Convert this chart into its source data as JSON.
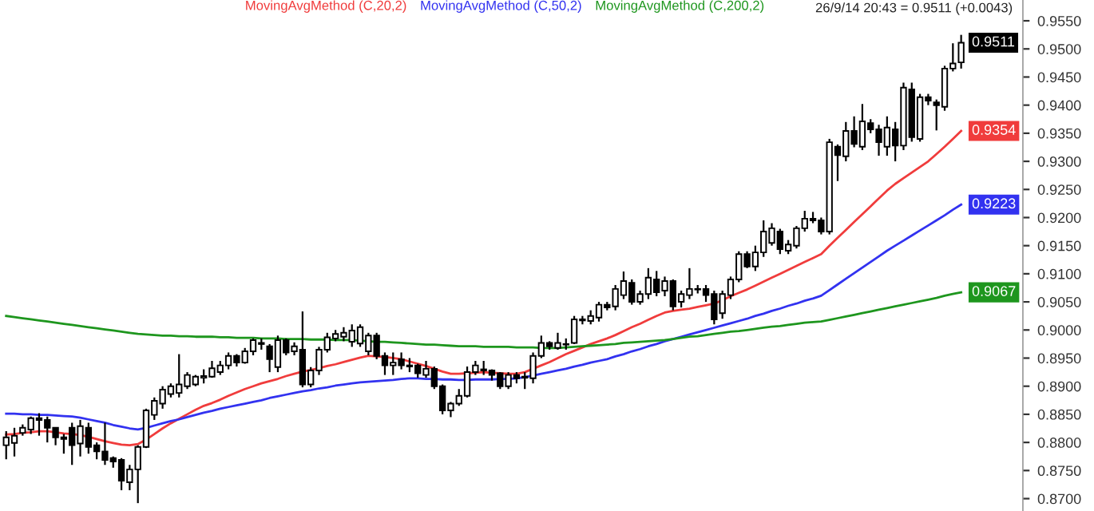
{
  "chart_data": {
    "type": "candlestick",
    "legend": "top",
    "grid": false,
    "categories": [
      null,
      null,
      null,
      null,
      null,
      null,
      null,
      null,
      null,
      null,
      null,
      null,
      null,
      null,
      null,
      null,
      null,
      null,
      null,
      null,
      null,
      null,
      null,
      null,
      null,
      null,
      null,
      null,
      null,
      null,
      null,
      null,
      null,
      null,
      null,
      null,
      null,
      null,
      null,
      null,
      null,
      null,
      null,
      null,
      null,
      null,
      null,
      null,
      null,
      null,
      null,
      null,
      null,
      null,
      null,
      null,
      null,
      null,
      null,
      null,
      null,
      null,
      null,
      null,
      null,
      null,
      null,
      null,
      null,
      null,
      null,
      null,
      null,
      null,
      null,
      null,
      null,
      null,
      null,
      null,
      null,
      null,
      null,
      null,
      null,
      null,
      null,
      null,
      null,
      null,
      null,
      null,
      null,
      null,
      null,
      null,
      null,
      null,
      null,
      null,
      null,
      null,
      null,
      null,
      null,
      null,
      null,
      null,
      null,
      null,
      null,
      null,
      null,
      null,
      null,
      null,
      null
    ],
    "ylim": [
      0.8678,
      0.9587
    ],
    "yticks": [
      {
        "value": 0.87,
        "label": "0.8700"
      },
      {
        "value": 0.875,
        "label": "0.8750"
      },
      {
        "value": 0.88,
        "label": "0.8800"
      },
      {
        "value": 0.885,
        "label": "0.8850"
      },
      {
        "value": 0.89,
        "label": "0.8900"
      },
      {
        "value": 0.895,
        "label": "0.8950"
      },
      {
        "value": 0.9,
        "label": "0.9000"
      },
      {
        "value": 0.905,
        "label": "0.9050"
      },
      {
        "value": 0.91,
        "label": "0.9100"
      },
      {
        "value": 0.915,
        "label": "0.9150"
      },
      {
        "value": 0.92,
        "label": "0.9200"
      },
      {
        "value": 0.925,
        "label": "0.9250"
      },
      {
        "value": 0.93,
        "label": "0.9300"
      },
      {
        "value": 0.935,
        "label": "0.9350"
      },
      {
        "value": 0.94,
        "label": "0.9400"
      },
      {
        "value": 0.945,
        "label": "0.9450"
      },
      {
        "value": 0.95,
        "label": "0.9500"
      },
      {
        "value": 0.955,
        "label": "0.9550"
      }
    ],
    "annotations": [
      "26/9/14 20:43 = 0.9511 (+0.0043)"
    ],
    "series": [
      {
        "type": "line",
        "name": "MovingAvgMethod (C,20,2)",
        "color": "#f03c3c",
        "values": [
          0.8814,
          0.8815,
          0.8817,
          0.8818,
          0.882,
          0.882,
          0.8818,
          0.8816,
          0.8815,
          0.8813,
          0.881,
          0.8806,
          0.8802,
          0.8799,
          0.8796,
          0.8795,
          0.8797,
          0.8805,
          0.8815,
          0.8825,
          0.8834,
          0.8842,
          0.885,
          0.8858,
          0.8865,
          0.887,
          0.8876,
          0.8883,
          0.8889,
          0.8895,
          0.89,
          0.8905,
          0.8909,
          0.8913,
          0.8918,
          0.8922,
          0.8926,
          0.8929,
          0.8932,
          0.8936,
          0.8939,
          0.8943,
          0.8947,
          0.8951,
          0.8954,
          0.8953,
          0.8952,
          0.895,
          0.8948,
          0.8944,
          0.894,
          0.8936,
          0.8931,
          0.8926,
          0.8922,
          0.8922,
          0.8923,
          0.8924,
          0.8925,
          0.8924,
          0.8923,
          0.8922,
          0.8922,
          0.8925,
          0.8931,
          0.8937,
          0.8943,
          0.895,
          0.8957,
          0.8963,
          0.8969,
          0.8975,
          0.898,
          0.8985,
          0.8991,
          0.8998,
          0.9005,
          0.9011,
          0.9018,
          0.9025,
          0.9031,
          0.9034,
          0.9036,
          0.9038,
          0.9041,
          0.9044,
          0.9047,
          0.9053,
          0.906,
          0.9066,
          0.9072,
          0.9079,
          0.9086,
          0.9093,
          0.91,
          0.9107,
          0.9114,
          0.9121,
          0.9128,
          0.9135,
          0.915,
          0.9164,
          0.9178,
          0.9192,
          0.9206,
          0.922,
          0.9234,
          0.9248,
          0.926,
          0.927,
          0.928,
          0.929,
          0.93,
          0.9313,
          0.9326,
          0.934,
          0.9354
        ],
        "value_labels": [
          null,
          null,
          null,
          null,
          null,
          null,
          null,
          null,
          null,
          null,
          null,
          null,
          null,
          null,
          null,
          null,
          null,
          null,
          null,
          null,
          null,
          null,
          null,
          null,
          null,
          null,
          null,
          null,
          null,
          null,
          null,
          null,
          null,
          null,
          null,
          null,
          null,
          null,
          null,
          null,
          null,
          null,
          null,
          null,
          null,
          null,
          null,
          null,
          null,
          null,
          null,
          null,
          null,
          null,
          null,
          null,
          null,
          null,
          null,
          null,
          null,
          null,
          null,
          null,
          null,
          null,
          null,
          null,
          null,
          null,
          null,
          null,
          null,
          null,
          null,
          null,
          null,
          null,
          null,
          null,
          null,
          null,
          null,
          null,
          null,
          null,
          null,
          null,
          null,
          null,
          null,
          null,
          null,
          null,
          null,
          null,
          null,
          null,
          null,
          null,
          null,
          null,
          null,
          null,
          null,
          null,
          null,
          null,
          null,
          null,
          null,
          null,
          null,
          null,
          null,
          null,
          "0.9354"
        ]
      },
      {
        "type": "line",
        "name": "MovingAvgMethod (C,50,2)",
        "color": "#3232f0",
        "values": [
          0.8851,
          0.8851,
          0.885,
          0.885,
          0.8849,
          0.8849,
          0.8848,
          0.8847,
          0.8846,
          0.8844,
          0.8841,
          0.8838,
          0.8835,
          0.8831,
          0.8828,
          0.8825,
          0.8823,
          0.8826,
          0.883,
          0.8834,
          0.8838,
          0.8841,
          0.8845,
          0.8849,
          0.8853,
          0.8856,
          0.886,
          0.8863,
          0.8866,
          0.8869,
          0.8872,
          0.8875,
          0.8879,
          0.8882,
          0.8885,
          0.8888,
          0.8891,
          0.8893,
          0.8896,
          0.8898,
          0.8901,
          0.8903,
          0.8905,
          0.8907,
          0.8908,
          0.8909,
          0.891,
          0.8911,
          0.8913,
          0.8914,
          0.8914,
          0.8913,
          0.8913,
          0.8912,
          0.8912,
          0.8911,
          0.8911,
          0.8912,
          0.8912,
          0.8912,
          0.8913,
          0.8913,
          0.8914,
          0.8916,
          0.8919,
          0.8922,
          0.8925,
          0.8928,
          0.8931,
          0.8935,
          0.8938,
          0.8942,
          0.8945,
          0.8948,
          0.8953,
          0.8957,
          0.8962,
          0.8966,
          0.8971,
          0.8975,
          0.898,
          0.8984,
          0.8988,
          0.8992,
          0.8996,
          0.9,
          0.9004,
          0.9008,
          0.9012,
          0.9016,
          0.902,
          0.9025,
          0.9029,
          0.9034,
          0.9038,
          0.9043,
          0.9047,
          0.9052,
          0.9056,
          0.9061,
          0.9071,
          0.9081,
          0.9091,
          0.9101,
          0.9111,
          0.9121,
          0.9131,
          0.9141,
          0.915,
          0.9159,
          0.9168,
          0.9177,
          0.9186,
          0.9195,
          0.9204,
          0.9214,
          0.9223
        ],
        "value_labels": [
          null,
          null,
          null,
          null,
          null,
          null,
          null,
          null,
          null,
          null,
          null,
          null,
          null,
          null,
          null,
          null,
          null,
          null,
          null,
          null,
          null,
          null,
          null,
          null,
          null,
          null,
          null,
          null,
          null,
          null,
          null,
          null,
          null,
          null,
          null,
          null,
          null,
          null,
          null,
          null,
          null,
          null,
          null,
          null,
          null,
          null,
          null,
          null,
          null,
          null,
          null,
          null,
          null,
          null,
          null,
          null,
          null,
          null,
          null,
          null,
          null,
          null,
          null,
          null,
          null,
          null,
          null,
          null,
          null,
          null,
          null,
          null,
          null,
          null,
          null,
          null,
          null,
          null,
          null,
          null,
          null,
          null,
          null,
          null,
          null,
          null,
          null,
          null,
          null,
          null,
          null,
          null,
          null,
          null,
          null,
          null,
          null,
          null,
          null,
          null,
          null,
          null,
          null,
          null,
          null,
          null,
          null,
          null,
          null,
          null,
          null,
          null,
          null,
          null,
          null,
          null,
          "0.9223"
        ]
      },
      {
        "type": "line",
        "name": "MovingAvgMethod (C,200,2)",
        "color": "#1e961e",
        "values": [
          0.9025,
          0.9023,
          0.9021,
          0.9019,
          0.9017,
          0.9015,
          0.9013,
          0.9011,
          0.9009,
          0.9007,
          0.9005,
          0.9003,
          0.9001,
          0.8999,
          0.8997,
          0.8995,
          0.8993,
          0.8992,
          0.8991,
          0.899,
          0.899,
          0.8989,
          0.8989,
          0.8988,
          0.8988,
          0.8988,
          0.8987,
          0.8987,
          0.8986,
          0.8986,
          0.8986,
          0.8985,
          0.8985,
          0.8985,
          0.8984,
          0.8984,
          0.8984,
          0.8983,
          0.8983,
          0.8983,
          0.8982,
          0.8982,
          0.8982,
          0.8981,
          0.898,
          0.8979,
          0.8979,
          0.8978,
          0.8977,
          0.8976,
          0.8975,
          0.8974,
          0.8974,
          0.8973,
          0.8972,
          0.8971,
          0.8971,
          0.8971,
          0.897,
          0.897,
          0.897,
          0.897,
          0.8969,
          0.8969,
          0.8969,
          0.8968,
          0.8968,
          0.8968,
          0.8969,
          0.897,
          0.8971,
          0.8972,
          0.8973,
          0.8974,
          0.8975,
          0.8977,
          0.8978,
          0.8979,
          0.898,
          0.8981,
          0.8982,
          0.8984,
          0.8986,
          0.8988,
          0.8989,
          0.8991,
          0.8993,
          0.8995,
          0.8997,
          0.8998,
          0.9,
          0.9002,
          0.9004,
          0.9006,
          0.9007,
          0.9009,
          0.9011,
          0.9013,
          0.9014,
          0.9015,
          0.9018,
          0.9021,
          0.9024,
          0.9027,
          0.903,
          0.9033,
          0.9036,
          0.9039,
          0.9042,
          0.9045,
          0.9048,
          0.9051,
          0.9054,
          0.9057,
          0.9061,
          0.9064,
          0.9067
        ],
        "value_labels": [
          null,
          null,
          null,
          null,
          null,
          null,
          null,
          null,
          null,
          null,
          null,
          null,
          null,
          null,
          null,
          null,
          null,
          null,
          null,
          null,
          null,
          null,
          null,
          null,
          null,
          null,
          null,
          null,
          null,
          null,
          null,
          null,
          null,
          null,
          null,
          null,
          null,
          null,
          null,
          null,
          null,
          null,
          null,
          null,
          null,
          null,
          null,
          null,
          null,
          null,
          null,
          null,
          null,
          null,
          null,
          null,
          null,
          null,
          null,
          null,
          null,
          null,
          null,
          null,
          null,
          null,
          null,
          null,
          null,
          null,
          null,
          null,
          null,
          null,
          null,
          null,
          null,
          null,
          null,
          null,
          null,
          null,
          null,
          null,
          null,
          null,
          null,
          null,
          null,
          null,
          null,
          null,
          null,
          null,
          null,
          null,
          null,
          null,
          null,
          null,
          null,
          null,
          null,
          null,
          null,
          null,
          null,
          null,
          null,
          null,
          null,
          null,
          null,
          null,
          null,
          null,
          "0.9067"
        ]
      },
      {
        "color": "#000000",
        "ohlc": [
          [
            0.8795,
            0.882,
            0.877,
            0.8809
          ],
          [
            0.8799,
            0.8826,
            0.8775,
            0.8812
          ],
          [
            0.8817,
            0.8832,
            0.8812,
            0.8826
          ],
          [
            0.8823,
            0.8846,
            0.8815,
            0.8843
          ],
          [
            0.8843,
            0.8852,
            0.8812,
            0.884
          ],
          [
            0.884,
            0.8846,
            0.88,
            0.8826
          ],
          [
            0.8826,
            0.8826,
            0.8795,
            0.8809
          ],
          [
            0.8809,
            0.8815,
            0.878,
            0.8806
          ],
          [
            0.8826,
            0.8835,
            0.876,
            0.8795
          ],
          [
            0.8798,
            0.884,
            0.8775,
            0.8829
          ],
          [
            0.8826,
            0.8835,
            0.878,
            0.8792
          ],
          [
            0.8795,
            0.88,
            0.877,
            0.8784
          ],
          [
            0.8784,
            0.8835,
            0.876,
            0.8769
          ],
          [
            0.8772,
            0.8775,
            0.8755,
            0.8766
          ],
          [
            0.8769,
            0.8772,
            0.8715,
            0.8732
          ],
          [
            0.8729,
            0.876,
            0.8715,
            0.8752
          ],
          [
            0.8752,
            0.8795,
            0.8692,
            0.8792
          ],
          [
            0.8792,
            0.886,
            0.879,
            0.8857
          ],
          [
            0.8849,
            0.888,
            0.884,
            0.8874
          ],
          [
            0.8869,
            0.89,
            0.886,
            0.8894
          ],
          [
            0.8886,
            0.8905,
            0.888,
            0.89
          ],
          [
            0.8888,
            0.8957,
            0.888,
            0.8903
          ],
          [
            0.89,
            0.8925,
            0.8895,
            0.892
          ],
          [
            0.8903,
            0.892,
            0.89,
            0.8917
          ],
          [
            0.8915,
            0.893,
            0.8905,
            0.8918
          ],
          [
            0.8917,
            0.8945,
            0.8915,
            0.8932
          ],
          [
            0.8925,
            0.8945,
            0.892,
            0.8937
          ],
          [
            0.8937,
            0.896,
            0.893,
            0.8954
          ],
          [
            0.8954,
            0.8957,
            0.8935,
            0.8942
          ],
          [
            0.8942,
            0.8968,
            0.894,
            0.8962
          ],
          [
            0.8962,
            0.8985,
            0.8955,
            0.8982
          ],
          [
            0.8977,
            0.8985,
            0.8965,
            0.8975
          ],
          [
            0.8971,
            0.8975,
            0.8925,
            0.8948
          ],
          [
            0.8934,
            0.899,
            0.8925,
            0.8982
          ],
          [
            0.8982,
            0.8985,
            0.8955,
            0.896
          ],
          [
            0.8962,
            0.8978,
            0.8955,
            0.8971
          ],
          [
            0.8965,
            0.9033,
            0.8898,
            0.8903
          ],
          [
            0.8903,
            0.8934,
            0.8898,
            0.8928
          ],
          [
            0.8928,
            0.897,
            0.892,
            0.8965
          ],
          [
            0.8965,
            0.8995,
            0.896,
            0.8987
          ],
          [
            0.8985,
            0.9,
            0.898,
            0.8993
          ],
          [
            0.8988,
            0.9005,
            0.898,
            0.8995
          ],
          [
            0.8979,
            0.901,
            0.897,
            0.8999
          ],
          [
            0.8976,
            0.901,
            0.897,
            0.9005
          ],
          [
            0.8962,
            0.8995,
            0.8955,
            0.899
          ],
          [
            0.899,
            0.8995,
            0.8948,
            0.8954
          ],
          [
            0.8954,
            0.896,
            0.892,
            0.8937
          ],
          [
            0.8937,
            0.896,
            0.892,
            0.8942
          ],
          [
            0.8948,
            0.896,
            0.893,
            0.8937
          ],
          [
            0.8937,
            0.895,
            0.8925,
            0.8935
          ],
          [
            0.8937,
            0.894,
            0.8915,
            0.8923
          ],
          [
            0.892,
            0.8945,
            0.8915,
            0.8931
          ],
          [
            0.8931,
            0.8935,
            0.8895,
            0.89
          ],
          [
            0.89,
            0.8903,
            0.885,
            0.8857
          ],
          [
            0.8857,
            0.8872,
            0.8845,
            0.8869
          ],
          [
            0.8869,
            0.8895,
            0.8865,
            0.8883
          ],
          [
            0.8883,
            0.8935,
            0.888,
            0.8925
          ],
          [
            0.8925,
            0.8945,
            0.892,
            0.8937
          ],
          [
            0.893,
            0.8945,
            0.892,
            0.8928
          ],
          [
            0.8928,
            0.893,
            0.891,
            0.892
          ],
          [
            0.8923,
            0.8925,
            0.8895,
            0.89
          ],
          [
            0.89,
            0.8925,
            0.8895,
            0.892
          ],
          [
            0.892,
            0.8925,
            0.8905,
            0.8914
          ],
          [
            0.8915,
            0.8925,
            0.8895,
            0.8917
          ],
          [
            0.8914,
            0.896,
            0.8905,
            0.8954
          ],
          [
            0.8954,
            0.899,
            0.895,
            0.8977
          ],
          [
            0.8977,
            0.898,
            0.8965,
            0.8971
          ],
          [
            0.8968,
            0.8995,
            0.8965,
            0.8977
          ],
          [
            0.8975,
            0.8985,
            0.8965,
            0.8974
          ],
          [
            0.8977,
            0.9025,
            0.8975,
            0.9019
          ],
          [
            0.9019,
            0.9025,
            0.901,
            0.9017
          ],
          [
            0.9016,
            0.9035,
            0.901,
            0.9025
          ],
          [
            0.9022,
            0.905,
            0.9015,
            0.9045
          ],
          [
            0.9045,
            0.905,
            0.9035,
            0.904
          ],
          [
            0.9042,
            0.908,
            0.9035,
            0.9073
          ],
          [
            0.9062,
            0.9104,
            0.9055,
            0.9087
          ],
          [
            0.9084,
            0.909,
            0.9045,
            0.905
          ],
          [
            0.905,
            0.907,
            0.9045,
            0.9064
          ],
          [
            0.9064,
            0.911,
            0.9055,
            0.9093
          ],
          [
            0.909,
            0.9105,
            0.906,
            0.9067
          ],
          [
            0.907,
            0.9095,
            0.906,
            0.9087
          ],
          [
            0.9087,
            0.909,
            0.9035,
            0.9042
          ],
          [
            0.905,
            0.907,
            0.904,
            0.9064
          ],
          [
            0.9062,
            0.911,
            0.9055,
            0.9073
          ],
          [
            0.9072,
            0.908,
            0.9065,
            0.9073
          ],
          [
            0.9073,
            0.908,
            0.905,
            0.9062
          ],
          [
            0.9064,
            0.907,
            0.901,
            0.9019
          ],
          [
            0.903,
            0.907,
            0.902,
            0.9064
          ],
          [
            0.9062,
            0.9095,
            0.9055,
            0.909
          ],
          [
            0.909,
            0.914,
            0.9085,
            0.9135
          ],
          [
            0.9135,
            0.914,
            0.911,
            0.9113
          ],
          [
            0.9113,
            0.915,
            0.9105,
            0.9138
          ],
          [
            0.9138,
            0.9195,
            0.913,
            0.9175
          ],
          [
            0.9155,
            0.919,
            0.915,
            0.9181
          ],
          [
            0.9175,
            0.918,
            0.9135,
            0.9144
          ],
          [
            0.9141,
            0.916,
            0.9135,
            0.9152
          ],
          [
            0.915,
            0.9185,
            0.9145,
            0.9181
          ],
          [
            0.9181,
            0.9212,
            0.9175,
            0.9198
          ],
          [
            0.9198,
            0.921,
            0.919,
            0.9195
          ],
          [
            0.9195,
            0.92,
            0.917,
            0.9175
          ],
          [
            0.9175,
            0.934,
            0.917,
            0.9334
          ],
          [
            0.9326,
            0.933,
            0.9265,
            0.9311
          ],
          [
            0.9309,
            0.937,
            0.93,
            0.9354
          ],
          [
            0.9354,
            0.938,
            0.9325,
            0.9331
          ],
          [
            0.9326,
            0.9402,
            0.932,
            0.9371
          ],
          [
            0.9368,
            0.9375,
            0.935,
            0.9357
          ],
          [
            0.9357,
            0.9365,
            0.931,
            0.9334
          ],
          [
            0.9326,
            0.938,
            0.931,
            0.936
          ],
          [
            0.9357,
            0.937,
            0.93,
            0.9328
          ],
          [
            0.9328,
            0.944,
            0.932,
            0.9431
          ],
          [
            0.9428,
            0.944,
            0.9335,
            0.9343
          ],
          [
            0.934,
            0.942,
            0.9335,
            0.9414
          ],
          [
            0.9414,
            0.942,
            0.94,
            0.9408
          ],
          [
            0.9405,
            0.941,
            0.9355,
            0.94
          ],
          [
            0.9397,
            0.947,
            0.939,
            0.9465
          ],
          [
            0.9465,
            0.951,
            0.946,
            0.9474
          ],
          [
            0.9476,
            0.9525,
            0.9465,
            0.9511
          ]
        ],
        "value_labels": [
          null,
          null,
          null,
          null,
          null,
          null,
          null,
          null,
          null,
          null,
          null,
          null,
          null,
          null,
          null,
          null,
          null,
          null,
          null,
          null,
          null,
          null,
          null,
          null,
          null,
          null,
          null,
          null,
          null,
          null,
          null,
          null,
          null,
          null,
          null,
          null,
          null,
          null,
          null,
          null,
          null,
          null,
          null,
          null,
          null,
          null,
          null,
          null,
          null,
          null,
          null,
          null,
          null,
          null,
          null,
          null,
          null,
          null,
          null,
          null,
          null,
          null,
          null,
          null,
          null,
          null,
          null,
          null,
          null,
          null,
          null,
          null,
          null,
          null,
          null,
          null,
          null,
          null,
          null,
          null,
          null,
          null,
          null,
          null,
          null,
          null,
          null,
          null,
          null,
          null,
          null,
          null,
          null,
          null,
          null,
          null,
          null,
          null,
          null,
          null,
          null,
          null,
          null,
          null,
          null,
          null,
          null,
          null,
          null,
          null,
          null,
          null,
          null,
          null,
          null,
          null,
          "0.9511"
        ]
      }
    ]
  }
}
